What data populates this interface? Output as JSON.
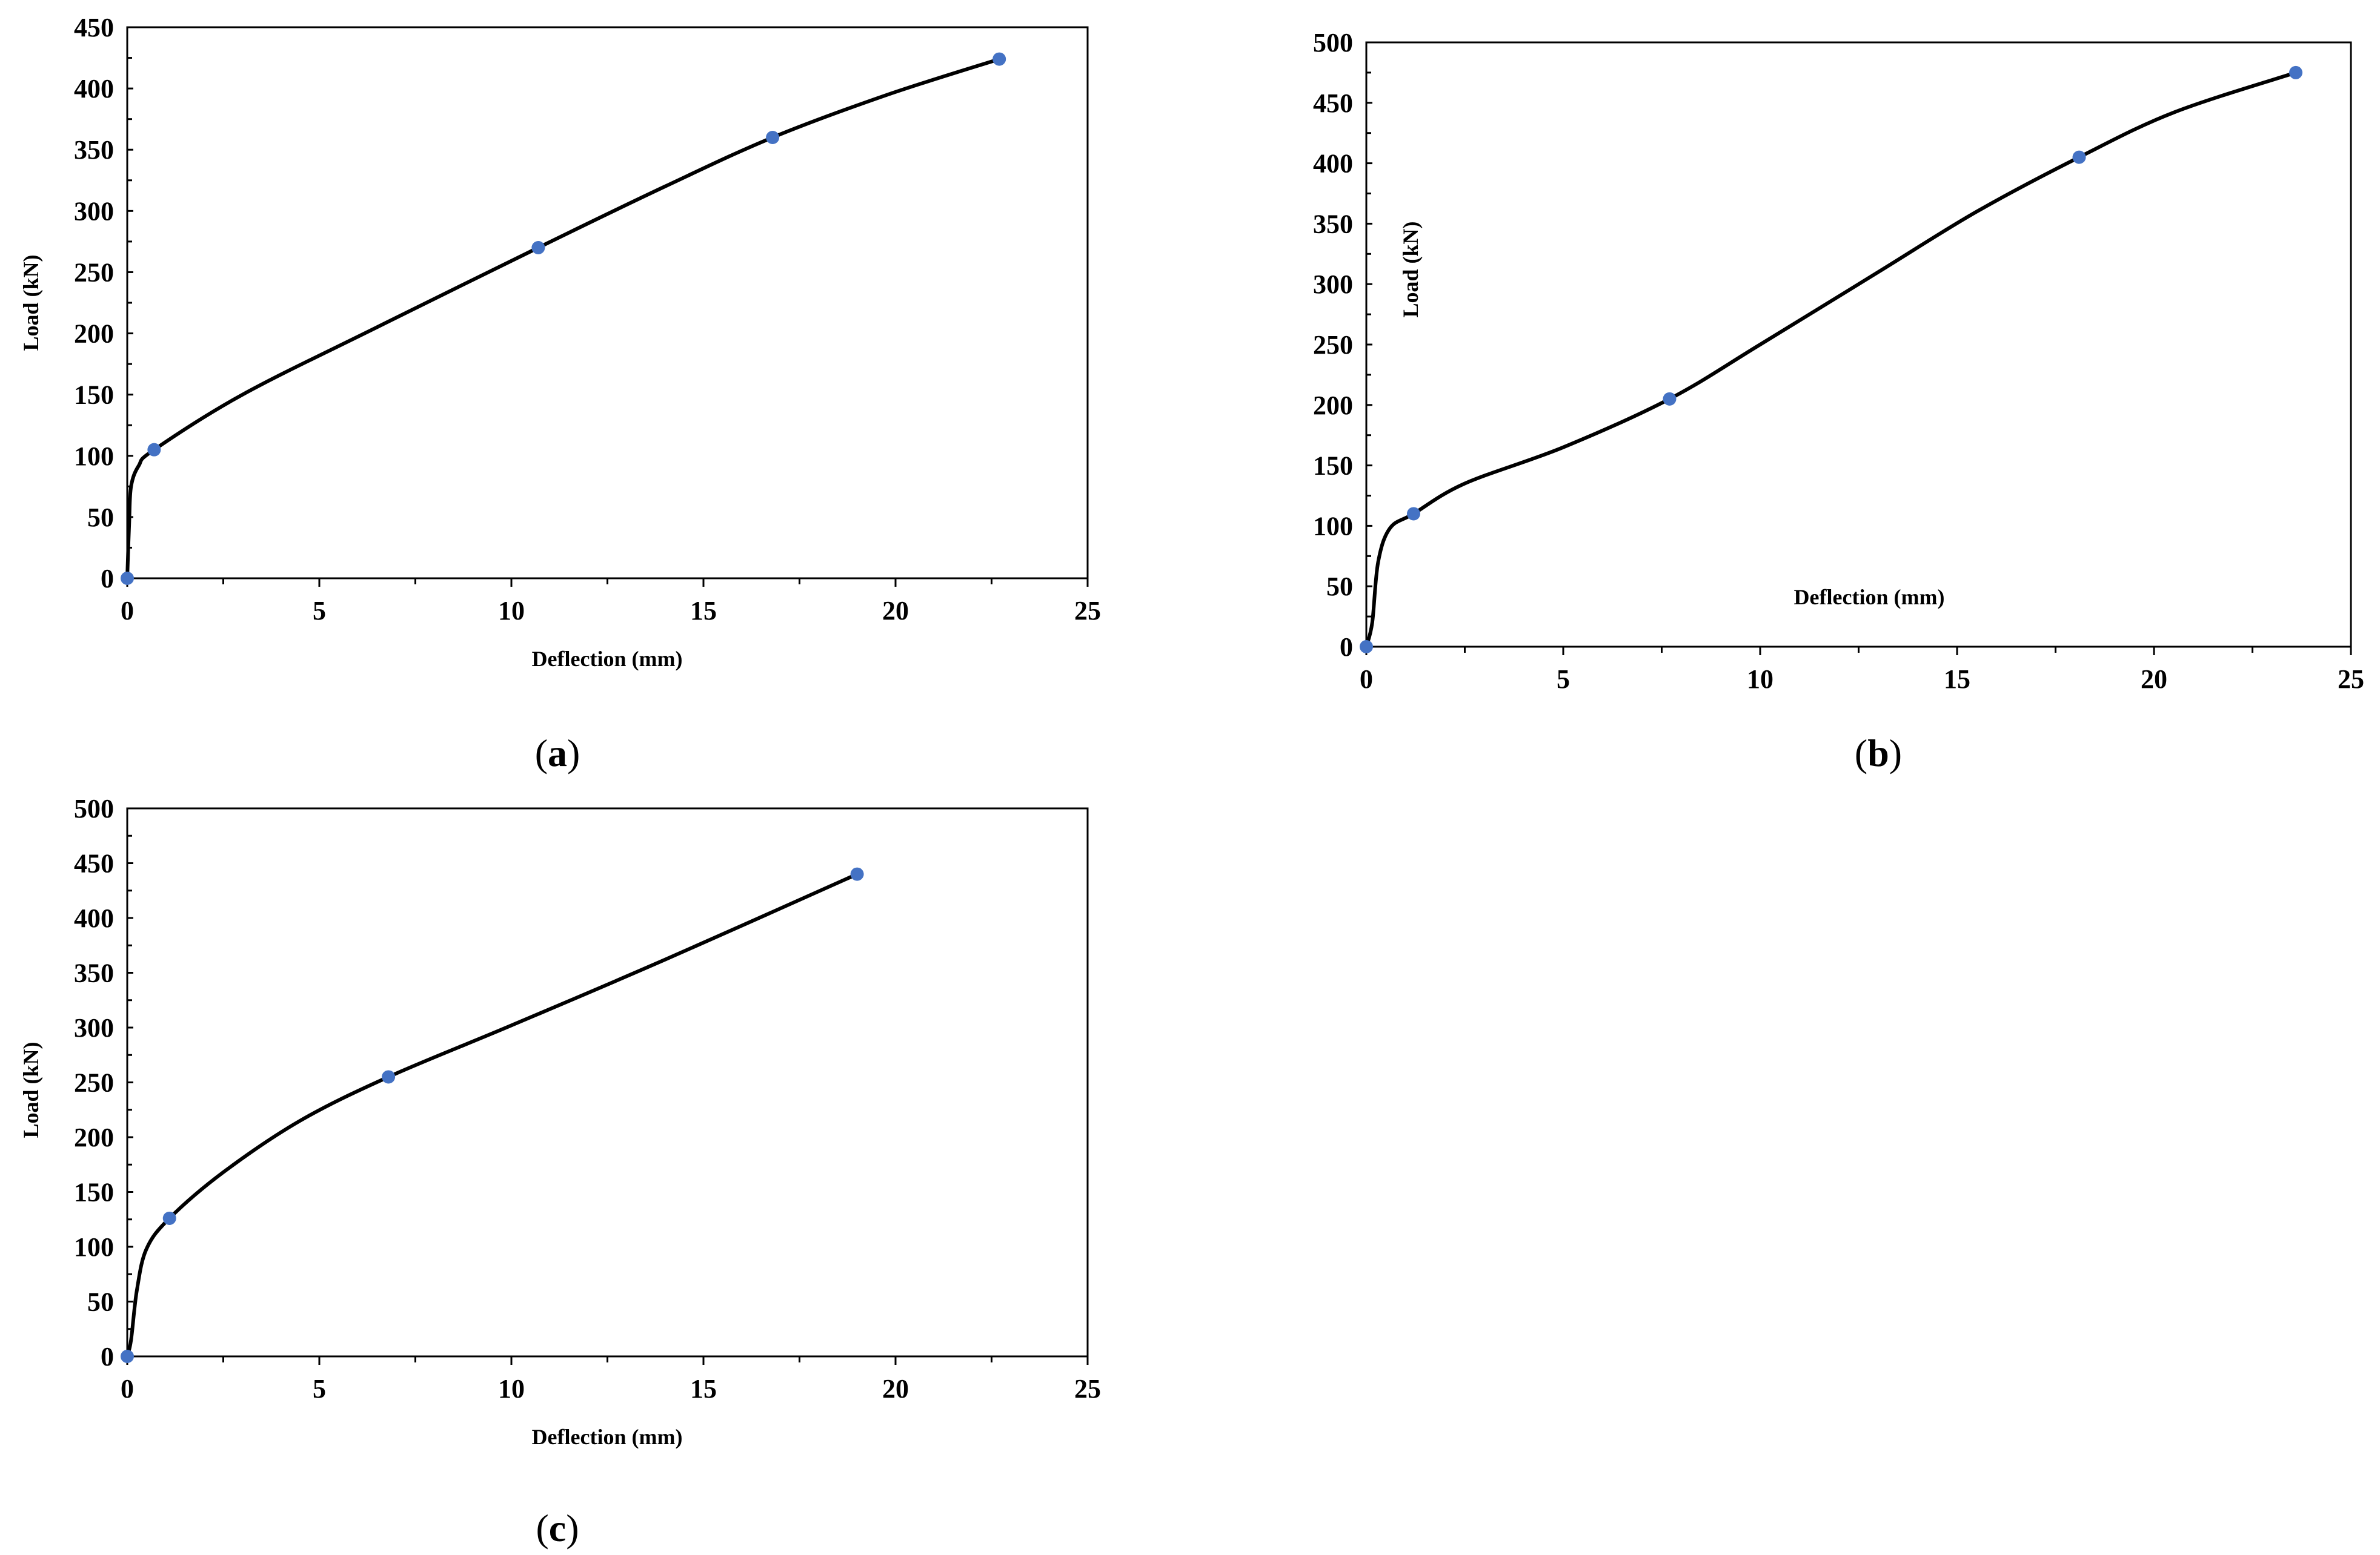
{
  "chart_data": [
    {
      "type": "line",
      "panel_label": "a",
      "xlabel": "Deflection (mm)",
      "ylabel": "Load (kN)",
      "xlim": [
        0,
        25
      ],
      "ylim": [
        0,
        450
      ],
      "xticks": [
        0,
        5,
        10,
        15,
        20,
        25
      ],
      "yticks": [
        0,
        50,
        100,
        150,
        200,
        250,
        300,
        350,
        400,
        450
      ],
      "grid": false,
      "legend": "none",
      "line_color": "#000000",
      "marker_color": "#4472C4",
      "points": [
        {
          "x": 0,
          "y": 0
        },
        {
          "x": 0.7,
          "y": 105
        },
        {
          "x": 10.7,
          "y": 270
        },
        {
          "x": 16.8,
          "y": 360
        },
        {
          "x": 22.7,
          "y": 424
        }
      ],
      "curve": [
        [
          0,
          0
        ],
        [
          0.05,
          45
        ],
        [
          0.1,
          75
        ],
        [
          0.3,
          92
        ],
        [
          0.7,
          105
        ],
        [
          3,
          150
        ],
        [
          6.5,
          205
        ],
        [
          10.7,
          270
        ],
        [
          14,
          320
        ],
        [
          16.8,
          360
        ],
        [
          19.8,
          395
        ],
        [
          22.7,
          424
        ]
      ]
    },
    {
      "type": "line",
      "panel_label": "b",
      "xlabel": "Deflection (mm)",
      "ylabel": "Load (kN)",
      "xlim": [
        0,
        25
      ],
      "ylim": [
        0,
        500
      ],
      "xticks": [
        0,
        5,
        10,
        15,
        20,
        25
      ],
      "yticks": [
        0,
        50,
        100,
        150,
        200,
        250,
        300,
        350,
        400,
        450,
        500
      ],
      "grid": false,
      "legend": "none",
      "line_color": "#000000",
      "marker_color": "#4472C4",
      "points": [
        {
          "x": 0,
          "y": 0
        },
        {
          "x": 1.2,
          "y": 110
        },
        {
          "x": 7.7,
          "y": 205
        },
        {
          "x": 18.1,
          "y": 405
        },
        {
          "x": 23.6,
          "y": 475
        }
      ],
      "curve": [
        [
          0,
          0
        ],
        [
          0.15,
          20
        ],
        [
          0.3,
          70
        ],
        [
          0.6,
          98
        ],
        [
          1.2,
          110
        ],
        [
          2.5,
          135
        ],
        [
          5,
          165
        ],
        [
          7.7,
          205
        ],
        [
          10,
          250
        ],
        [
          13,
          310
        ],
        [
          15.5,
          360
        ],
        [
          18.1,
          405
        ],
        [
          20.5,
          442
        ],
        [
          23.6,
          475
        ]
      ]
    },
    {
      "type": "line",
      "panel_label": "c",
      "xlabel": "Deflection (mm)",
      "ylabel": "Load (kN)",
      "xlim": [
        0,
        25
      ],
      "ylim": [
        0,
        500
      ],
      "xticks": [
        0,
        5,
        10,
        15,
        20,
        25
      ],
      "yticks": [
        0,
        50,
        100,
        150,
        200,
        250,
        300,
        350,
        400,
        450,
        500
      ],
      "grid": false,
      "legend": "none",
      "line_color": "#000000",
      "marker_color": "#4472C4",
      "points": [
        {
          "x": 0,
          "y": 0
        },
        {
          "x": 1.1,
          "y": 126
        },
        {
          "x": 6.8,
          "y": 255
        },
        {
          "x": 19.0,
          "y": 440
        }
      ],
      "curve": [
        [
          0,
          0
        ],
        [
          0.1,
          15
        ],
        [
          0.25,
          60
        ],
        [
          0.5,
          98
        ],
        [
          1.1,
          126
        ],
        [
          2.5,
          168
        ],
        [
          4.5,
          215
        ],
        [
          6.8,
          255
        ],
        [
          10,
          302
        ],
        [
          14,
          362
        ],
        [
          19.0,
          440
        ]
      ]
    }
  ]
}
